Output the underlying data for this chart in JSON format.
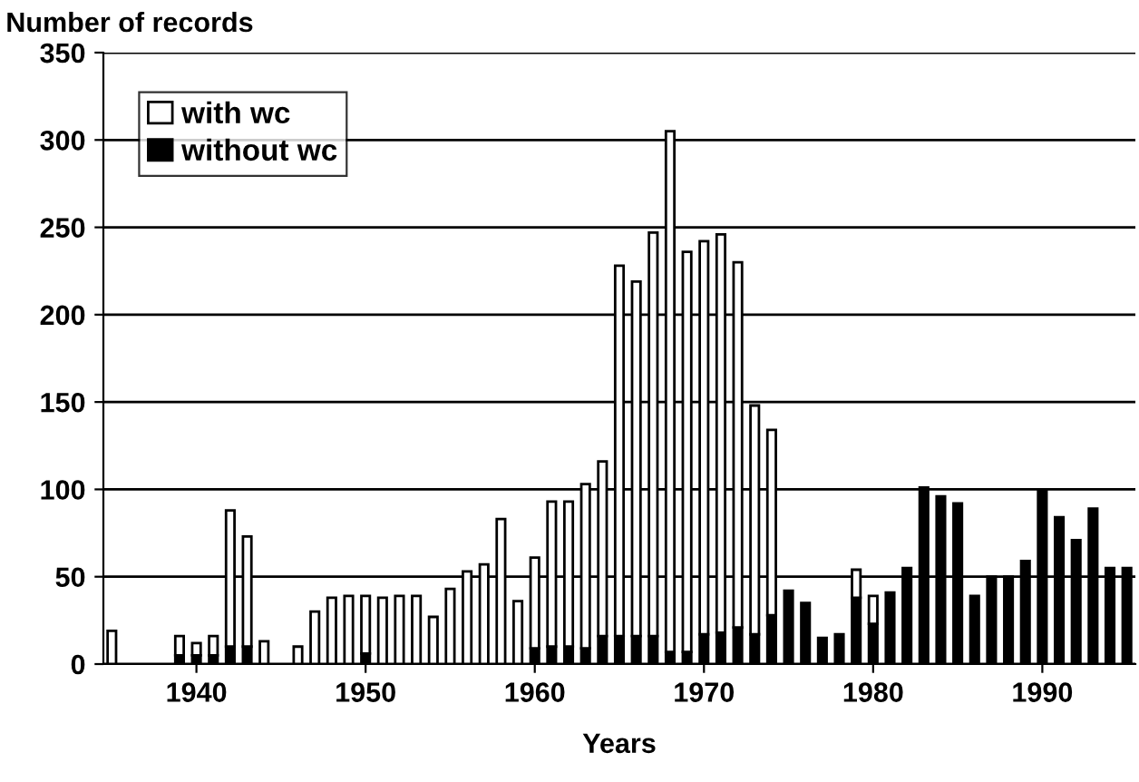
{
  "chart_data": {
    "type": "bar",
    "ylabel": "Number of records",
    "xlabel": "Years",
    "stacked": true,
    "categories": [
      null,
      null,
      null,
      null,
      null,
      "1940",
      null,
      null,
      null,
      null,
      null,
      null,
      null,
      null,
      null,
      "1950",
      null,
      null,
      null,
      null,
      null,
      null,
      null,
      null,
      null,
      "1960",
      null,
      null,
      null,
      null,
      null,
      null,
      null,
      null,
      null,
      "1970",
      null,
      null,
      null,
      null,
      null,
      null,
      null,
      null,
      null,
      "1980",
      null,
      null,
      null,
      null,
      null,
      null,
      null,
      null,
      null,
      "1990",
      null,
      null,
      null,
      null,
      null
    ],
    "series": [
      {
        "name": "without wc",
        "color": "#000000",
        "values": [
          null,
          null,
          null,
          null,
          5,
          5,
          5,
          10,
          10,
          null,
          null,
          null,
          null,
          null,
          null,
          6,
          null,
          null,
          null,
          null,
          null,
          null,
          null,
          null,
          null,
          9,
          10,
          10,
          9,
          16,
          16,
          16,
          16,
          7,
          7,
          17,
          18,
          21,
          17,
          28,
          42,
          35,
          15,
          17,
          38,
          23,
          41,
          55,
          101,
          96,
          92,
          39,
          50,
          50,
          59,
          99,
          84,
          71,
          89,
          55,
          55
        ]
      },
      {
        "name": "with wc",
        "color": "#ffffff",
        "values": [
          19,
          null,
          null,
          null,
          11,
          7,
          11,
          78,
          63,
          13,
          null,
          10,
          30,
          38,
          39,
          33,
          38,
          39,
          39,
          27,
          43,
          53,
          57,
          83,
          36,
          52,
          83,
          83,
          94,
          100,
          212,
          203,
          231,
          298,
          229,
          225,
          228,
          209,
          131,
          106,
          null,
          null,
          null,
          null,
          16,
          16,
          null,
          null,
          null,
          null,
          null,
          null,
          null,
          null,
          null,
          null,
          null,
          null,
          null,
          null,
          null
        ]
      }
    ],
    "ylim": [
      0,
      350
    ],
    "yticks": [
      0,
      50,
      100,
      150,
      200,
      250,
      300,
      350
    ],
    "grid": "y",
    "legend": "top left"
  }
}
